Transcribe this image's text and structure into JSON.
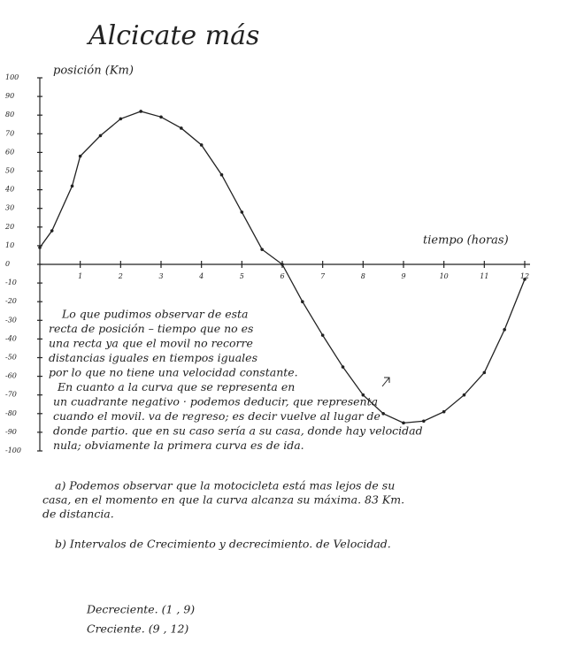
{
  "chart_data": {
    "type": "line",
    "title": "Alcicate más",
    "y_label": "posición (Km)",
    "x_label": "tiempo (horas)",
    "xlim": [
      0,
      12
    ],
    "ylim": [
      -100,
      100
    ],
    "xticks": [
      1,
      2,
      3,
      4,
      5,
      6,
      7,
      8,
      9,
      10,
      11,
      12
    ],
    "yticks": [
      100,
      90,
      80,
      70,
      60,
      50,
      40,
      30,
      20,
      10,
      0,
      -10,
      -20,
      -30,
      -40,
      -50,
      -60,
      -70,
      -80,
      -90,
      -100
    ],
    "x": [
      0,
      0.3,
      0.8,
      1,
      1.5,
      2,
      2.5,
      3,
      3.5,
      4,
      4.5,
      5,
      5.5,
      6,
      6.5,
      7,
      7.5,
      8,
      8.5,
      9,
      9.5,
      10,
      10.5,
      11,
      11.5,
      12
    ],
    "series": [
      {
        "name": "posición",
        "color": "#222",
        "values": [
          9,
          18,
          42,
          58,
          69,
          78,
          82,
          79,
          73,
          64,
          48,
          28,
          8,
          0,
          -20,
          -38,
          -55,
          -70,
          -80,
          -85,
          -84,
          -79,
          -70,
          -58,
          -35,
          -8
        ]
      }
    ]
  },
  "notes": [
    "Lo que pudimos observar de esta",
    "recta de posición – tiempo que no es",
    "una recta ya que el movil no recorre",
    "distancias iguales en tiempos iguales",
    "por lo que no tiene una velocidad constante.",
    "En cuanto a la curva que se representa en",
    "un cuadrante negativo · podemos deducir, que representa",
    "cuando el movil. va de regreso; es decir vuelve al lugar de",
    "donde partio. que en su caso sería a su casa, donde hay velocidad",
    "nula; obviamente la primera curva es de ida."
  ],
  "answer_a": [
    "a)  Podemos observar que la motocicleta está mas lejos de su",
    "casa, en el momento en que la curva alcanza su máxima. 83 Km.",
    "de distancia."
  ],
  "answer_b": "b)  Intervalos de Crecimiento y decrecimiento. de Velocidad.",
  "intervals": [
    "Decreciente.  (1 ,  9)",
    "Creciente.  (9 , 12)"
  ]
}
